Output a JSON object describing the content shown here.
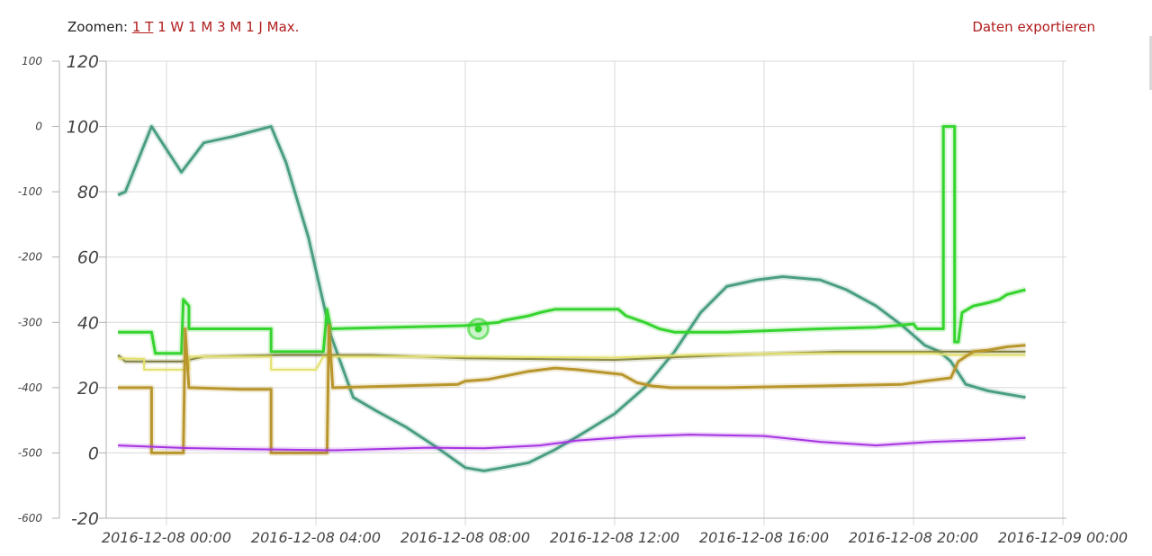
{
  "zoom": {
    "label": "Zoomen:",
    "options": [
      "1 T",
      "1 W",
      "1 M",
      "3 M",
      "1 J",
      "Max."
    ],
    "active": "1 T"
  },
  "export_label": "Daten exportieren",
  "chart_data": {
    "type": "line",
    "title": "",
    "xlabel": "",
    "ylabel": "",
    "grid": true,
    "x_ticks": [
      "2016-12-08 00:00",
      "2016-12-08 04:00",
      "2016-12-08 08:00",
      "2016-12-08 12:00",
      "2016-12-08 16:00",
      "2016-12-08 20:00",
      "2016-12-09 00:00"
    ],
    "y_axis_left": {
      "ticks": [
        120,
        100,
        80,
        60,
        40,
        20,
        0,
        -20
      ],
      "range": [
        -20,
        120
      ]
    },
    "y_axis_left_outer": {
      "ticks": [
        100,
        0,
        -100,
        -200,
        -300,
        -400,
        -500,
        -600
      ],
      "range": [
        -600,
        100
      ]
    },
    "x_range_hours": [
      -1.4,
      24
    ],
    "series": [
      {
        "color": "#4a9e82",
        "axis": "left",
        "width": 3,
        "points": [
          [
            -1.3,
            79
          ],
          [
            -1.1,
            80
          ],
          [
            -0.4,
            100
          ],
          [
            0.4,
            86
          ],
          [
            1,
            95
          ],
          [
            1.8,
            97
          ],
          [
            2.8,
            100
          ],
          [
            3.2,
            89
          ],
          [
            3.8,
            66
          ],
          [
            4.4,
            36
          ],
          [
            5,
            17
          ],
          [
            5.6,
            13
          ],
          [
            6.4,
            8
          ],
          [
            7.2,
            2
          ],
          [
            8,
            -4.5
          ],
          [
            8.5,
            -5.5
          ],
          [
            9,
            -4.5
          ],
          [
            9.7,
            -3
          ],
          [
            10.4,
            1
          ],
          [
            11,
            5
          ],
          [
            12,
            12
          ],
          [
            12.8,
            20
          ],
          [
            13.6,
            31
          ],
          [
            14.3,
            43
          ],
          [
            15,
            51
          ],
          [
            15.8,
            53
          ],
          [
            16.5,
            54
          ],
          [
            17.5,
            53
          ],
          [
            18.2,
            50
          ],
          [
            19,
            45
          ],
          [
            19.7,
            39
          ],
          [
            20.3,
            33
          ],
          [
            20.7,
            31
          ],
          [
            21,
            28
          ],
          [
            21.4,
            21
          ],
          [
            22,
            19
          ],
          [
            23,
            17
          ]
        ]
      },
      {
        "color": "#35d42e",
        "axis": "left",
        "width": 3,
        "points": [
          [
            -1.3,
            37
          ],
          [
            -0.4,
            37
          ],
          [
            -0.3,
            30.5
          ],
          [
            0.4,
            30.5
          ],
          [
            0.45,
            47
          ],
          [
            0.6,
            45
          ],
          [
            0.6,
            38
          ],
          [
            2.8,
            38
          ],
          [
            2.8,
            31
          ],
          [
            4.2,
            31
          ],
          [
            4.3,
            44
          ],
          [
            4.4,
            38
          ],
          [
            8,
            39
          ],
          [
            8.9,
            40
          ],
          [
            9,
            40.5
          ],
          [
            9.7,
            42
          ],
          [
            10,
            43
          ],
          [
            10.4,
            44
          ],
          [
            12.1,
            44
          ],
          [
            12.3,
            42
          ],
          [
            12.8,
            40
          ],
          [
            13.2,
            38
          ],
          [
            13.6,
            37
          ],
          [
            15,
            37
          ],
          [
            17.5,
            38
          ],
          [
            19,
            38.5
          ],
          [
            20,
            39.5
          ],
          [
            20.1,
            38
          ],
          [
            20.8,
            38
          ],
          [
            20.8,
            100
          ],
          [
            21.1,
            100
          ],
          [
            21.1,
            34
          ],
          [
            21.2,
            34
          ],
          [
            21.3,
            43
          ],
          [
            21.6,
            45
          ],
          [
            22,
            46
          ],
          [
            22.3,
            47
          ],
          [
            22.5,
            48.5
          ],
          [
            23,
            50
          ]
        ]
      },
      {
        "color": "#7a7a3a",
        "axis": "left",
        "width": 2,
        "points": [
          [
            -1.3,
            30
          ],
          [
            -1.1,
            28
          ],
          [
            0.4,
            28
          ],
          [
            1,
            29.5
          ],
          [
            3,
            30
          ],
          [
            5.5,
            30
          ],
          [
            8,
            29
          ],
          [
            12,
            28.5
          ],
          [
            13,
            29
          ],
          [
            15,
            30
          ],
          [
            18,
            31
          ],
          [
            20,
            31
          ],
          [
            23,
            31
          ]
        ]
      },
      {
        "color": "#e3e06c",
        "axis": "left",
        "width": 2,
        "points": [
          [
            -1.3,
            29
          ],
          [
            -0.6,
            28.8
          ],
          [
            -0.6,
            25.5
          ],
          [
            0.6,
            25.5
          ],
          [
            0.6,
            29.5
          ],
          [
            2.8,
            29.5
          ],
          [
            2.8,
            25.5
          ],
          [
            4,
            25.5
          ],
          [
            4.2,
            29.5
          ],
          [
            8,
            29.5
          ],
          [
            12,
            29.2
          ],
          [
            14,
            30
          ],
          [
            17,
            30.5
          ],
          [
            20.5,
            30.5
          ],
          [
            21,
            30
          ],
          [
            23,
            30
          ]
        ]
      },
      {
        "color": "#b8962c",
        "axis": "left",
        "width": 3,
        "points": [
          [
            -1.3,
            20
          ],
          [
            -0.4,
            20
          ],
          [
            -0.4,
            0
          ],
          [
            0.45,
            0
          ],
          [
            0.5,
            38
          ],
          [
            0.6,
            20
          ],
          [
            2,
            19.5
          ],
          [
            2.8,
            19.5
          ],
          [
            2.8,
            0
          ],
          [
            4.3,
            0
          ],
          [
            4.35,
            39
          ],
          [
            4.45,
            20
          ],
          [
            7.8,
            21
          ],
          [
            8,
            22
          ],
          [
            8.6,
            22.5
          ],
          [
            9.7,
            25
          ],
          [
            10.4,
            26
          ],
          [
            11,
            25.5
          ],
          [
            12.2,
            24
          ],
          [
            12.6,
            21.5
          ],
          [
            13,
            20.5
          ],
          [
            13.5,
            20
          ],
          [
            15,
            20
          ],
          [
            17.5,
            20.5
          ],
          [
            19.7,
            21
          ],
          [
            20.3,
            22
          ],
          [
            21,
            23
          ],
          [
            21.2,
            28
          ],
          [
            21.6,
            31
          ],
          [
            22,
            31.5
          ],
          [
            22.5,
            32.5
          ],
          [
            23,
            33
          ]
        ]
      },
      {
        "color": "#a633e0",
        "axis": "left",
        "width": 2,
        "points": [
          [
            -1.3,
            2.3
          ],
          [
            0.5,
            1.5
          ],
          [
            2,
            1.2
          ],
          [
            4.5,
            0.8
          ],
          [
            7,
            1.6
          ],
          [
            8.5,
            1.4
          ],
          [
            10,
            2.3
          ],
          [
            11,
            3.8
          ],
          [
            12.5,
            5
          ],
          [
            14,
            5.6
          ],
          [
            16,
            5.2
          ],
          [
            17.5,
            3.4
          ],
          [
            19,
            2.3
          ],
          [
            20.5,
            3.4
          ],
          [
            22,
            4
          ],
          [
            23,
            4.6
          ]
        ]
      }
    ],
    "markers": [
      {
        "x": 8.35,
        "y": 38,
        "color": "#35d42e"
      }
    ]
  }
}
